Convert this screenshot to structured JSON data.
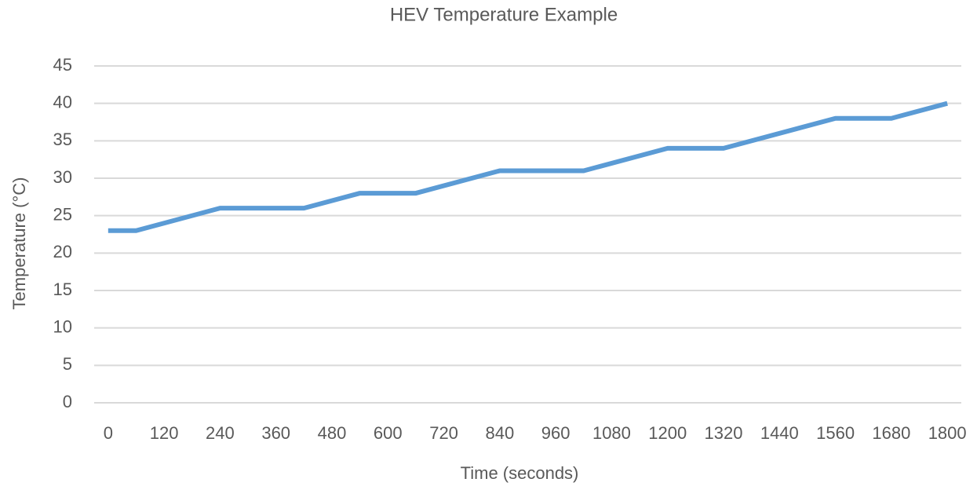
{
  "chart_data": {
    "type": "line",
    "title": "HEV Temperature Example",
    "x_label": "Time (seconds)",
    "y_label": "Temperature (°C)",
    "x": [
      0,
      60,
      240,
      420,
      540,
      660,
      840,
      1020,
      1200,
      1320,
      1560,
      1680,
      1800
    ],
    "series": [
      {
        "name": "Temperature",
        "color": "#5b9bd5",
        "values": [
          23,
          23,
          26,
          26,
          28,
          28,
          31,
          31,
          34,
          34,
          38,
          38,
          40
        ]
      }
    ],
    "xlim": [
      -30,
      1830
    ],
    "xticks": [
      0,
      120,
      240,
      360,
      480,
      600,
      720,
      840,
      960,
      1080,
      1200,
      1320,
      1440,
      1560,
      1680,
      1800
    ],
    "ylim": [
      0,
      45
    ],
    "yticks": [
      0,
      5,
      10,
      15,
      20,
      25,
      30,
      35,
      40,
      45
    ],
    "grid": true
  }
}
